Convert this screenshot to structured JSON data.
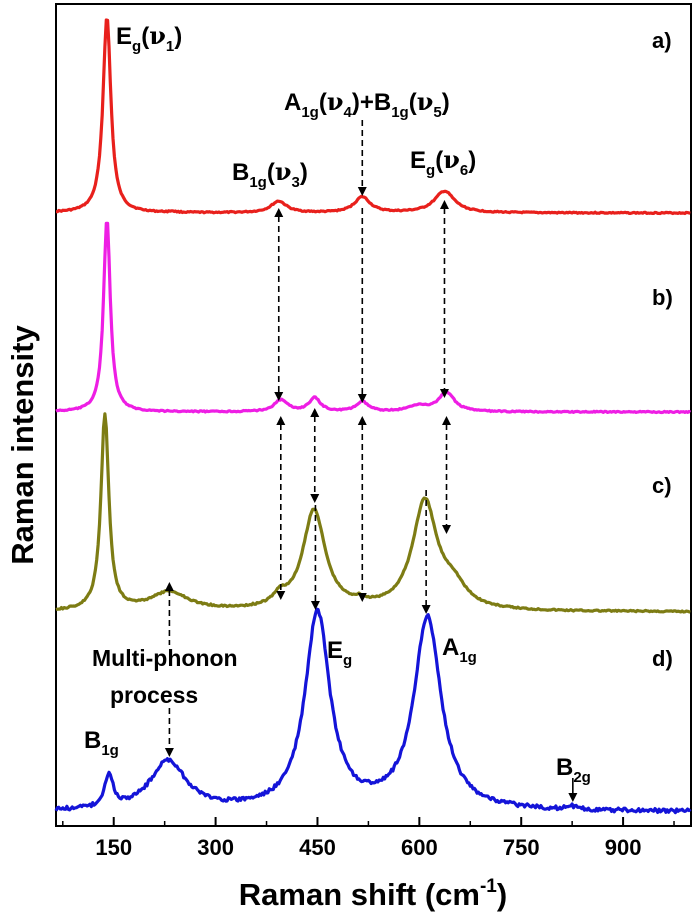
{
  "chart_data": {
    "type": "line",
    "xlabel": "Raman shift (cm",
    "xlabel_sup": "-1",
    "xlabel_end": ")",
    "ylabel": "Raman intensity",
    "xlim": [
      65,
      1000
    ],
    "x_ticks": [
      150,
      300,
      450,
      600,
      750,
      900
    ],
    "y_ticks_shown": false,
    "legend": "none",
    "series": [
      {
        "label": "a)",
        "color": "#e8201c",
        "baseline": 0.0,
        "peaks": [
          {
            "center": 140,
            "height": 1.0,
            "width": 7
          },
          {
            "center": 236,
            "height": 0.006,
            "width": 4
          },
          {
            "center": 393,
            "height": 0.058,
            "width": 14
          },
          {
            "center": 516,
            "height": 0.08,
            "width": 14
          },
          {
            "center": 637,
            "height": 0.11,
            "width": 18
          }
        ]
      },
      {
        "label": "b)",
        "color": "#ee1ee4",
        "baseline": 0.0,
        "peaks": [
          {
            "center": 140,
            "height": 1.0,
            "width": 6
          },
          {
            "center": 396,
            "height": 0.06,
            "width": 12
          },
          {
            "center": 446,
            "height": 0.07,
            "width": 10
          },
          {
            "center": 516,
            "height": 0.05,
            "width": 11
          },
          {
            "center": 598,
            "height": 0.03,
            "width": 16
          },
          {
            "center": 640,
            "height": 0.1,
            "width": 14
          }
        ]
      },
      {
        "label": "c)",
        "color": "#7d7c14",
        "baseline": 0.0,
        "peaks": [
          {
            "center": 137,
            "height": 1.0,
            "width": 7
          },
          {
            "center": 232,
            "height": 0.095,
            "width": 34
          },
          {
            "center": 395,
            "height": 0.05,
            "width": 12
          },
          {
            "center": 445,
            "height": 0.51,
            "width": 20
          },
          {
            "center": 512,
            "height": 0.02,
            "width": 9
          },
          {
            "center": 608,
            "height": 0.55,
            "width": 22
          },
          {
            "center": 650,
            "height": 0.1,
            "width": 22
          }
        ]
      },
      {
        "label": "d)",
        "color": "#1414d8",
        "baseline": 0.0,
        "peaks": [
          {
            "center": 143,
            "height": 0.17,
            "width": 7
          },
          {
            "center": 230,
            "height": 0.25,
            "width": 32
          },
          {
            "center": 450,
            "height": 1.0,
            "width": 22
          },
          {
            "center": 612,
            "height": 0.98,
            "width": 24
          },
          {
            "center": 826,
            "height": 0.015,
            "width": 9
          }
        ]
      }
    ],
    "annotations": {
      "a_Eg_v1": {
        "base": "E",
        "sub": "g",
        "mid": "(",
        "greek": "ν",
        "greek_sub": "1",
        "end": ")"
      },
      "a_B1g_v3": {
        "base": "B",
        "sub": "1g",
        "mid": "(",
        "greek": "ν",
        "greek_sub": "3",
        "end": ")"
      },
      "a_A1g_B1g": {
        "base": "A",
        "sub": "1g",
        "mid": "(",
        "greek": "ν",
        "greek_sub": "4",
        "plus": ")+B",
        "sub2": "1g",
        "mid2": "(",
        "greek2": "ν",
        "greek_sub2": "5",
        "end": ")"
      },
      "a_Eg_v6": {
        "base": "E",
        "sub": "g",
        "mid": "(",
        "greek": "ν",
        "greek_sub": "6",
        "end": ")"
      },
      "d_Eg": {
        "base": "E",
        "sub": "g"
      },
      "d_A1g": {
        "base": "A",
        "sub": "1g"
      },
      "d_B1g": {
        "base": "B",
        "sub": "1g"
      },
      "d_B2g": {
        "base": "B",
        "sub": "2g"
      },
      "multiphonon_line1": "Multi-phonon",
      "multiphonon_line2": "process"
    }
  }
}
